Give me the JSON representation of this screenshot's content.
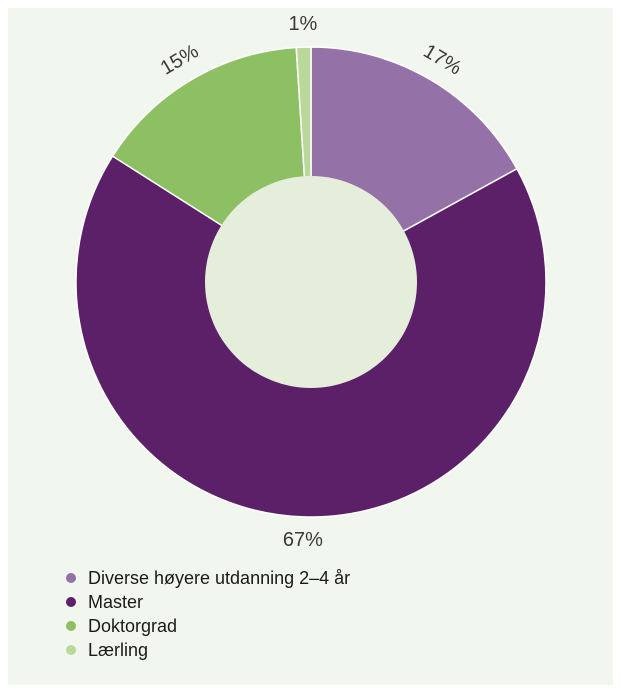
{
  "chart_data": {
    "type": "pie",
    "variant": "donut",
    "title": "",
    "categories": [
      "Diverse høyere utdanning 2–4 år",
      "Master",
      "Doktorgrad",
      "Lærling"
    ],
    "values": [
      17,
      67,
      15,
      1
    ],
    "data_labels": [
      "17%",
      "67%",
      "15%",
      "1%"
    ],
    "colors": [
      "#9471a6",
      "#5c2069",
      "#8cc063",
      "#b9d99b"
    ],
    "center_color": "#e4eedb",
    "legend_position": "bottom-left"
  }
}
